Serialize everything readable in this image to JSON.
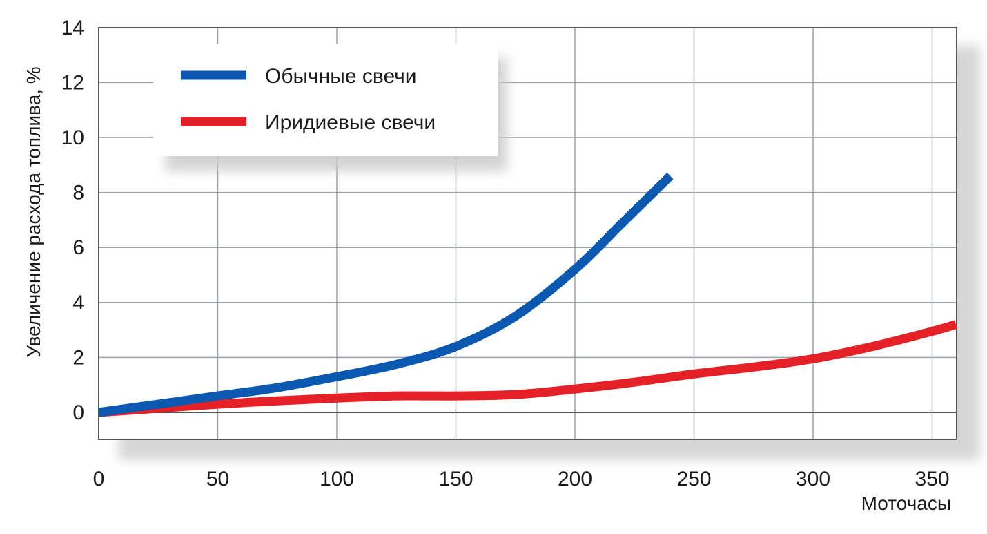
{
  "chart_data": {
    "type": "line",
    "title": "",
    "xlabel": "Моточасы",
    "ylabel": "Увеличение расхода топлива, %",
    "xlim": [
      0,
      360
    ],
    "ylim": [
      -1,
      14
    ],
    "x_ticks": [
      "0",
      "50",
      "100",
      "150",
      "200",
      "250",
      "300",
      "350"
    ],
    "y_ticks": [
      "0",
      "2",
      "4",
      "6",
      "8",
      "10",
      "12",
      "14"
    ],
    "grid": true,
    "legend_position": "top-left",
    "series": [
      {
        "name": "Обычные свечи",
        "color": "#0a58b0",
        "points": [
          [
            0,
            0
          ],
          [
            25,
            0.3
          ],
          [
            50,
            0.6
          ],
          [
            75,
            0.9
          ],
          [
            100,
            1.3
          ],
          [
            125,
            1.75
          ],
          [
            150,
            2.4
          ],
          [
            175,
            3.5
          ],
          [
            200,
            5.2
          ],
          [
            220,
            6.9
          ],
          [
            240,
            8.6
          ]
        ]
      },
      {
        "name": "Иридиевые свечи",
        "color": "#e32127",
        "points": [
          [
            0,
            0
          ],
          [
            25,
            0.15
          ],
          [
            50,
            0.3
          ],
          [
            75,
            0.42
          ],
          [
            100,
            0.52
          ],
          [
            125,
            0.6
          ],
          [
            150,
            0.6
          ],
          [
            175,
            0.65
          ],
          [
            200,
            0.85
          ],
          [
            225,
            1.1
          ],
          [
            250,
            1.4
          ],
          [
            275,
            1.65
          ],
          [
            300,
            1.95
          ],
          [
            325,
            2.4
          ],
          [
            350,
            2.95
          ],
          [
            360,
            3.2
          ]
        ]
      }
    ]
  }
}
